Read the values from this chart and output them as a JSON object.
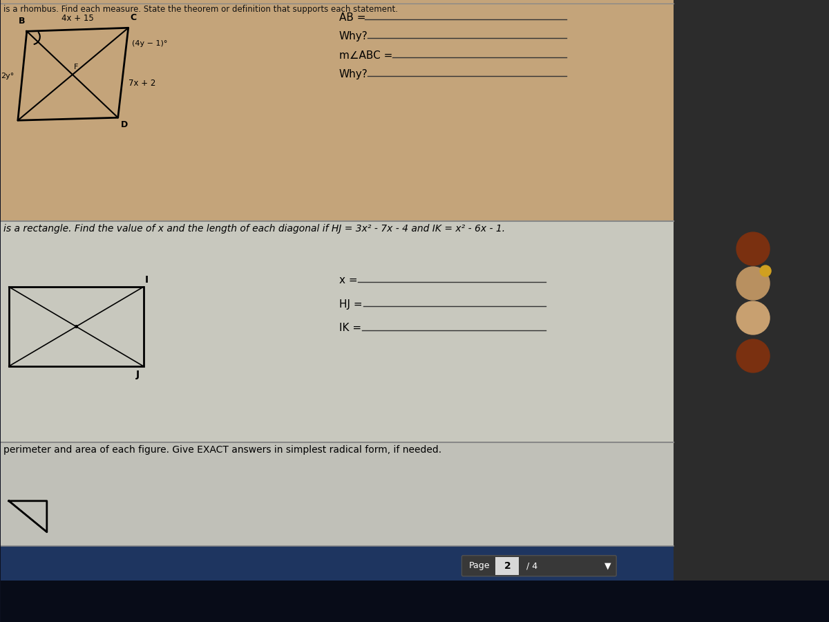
{
  "bg_tan": "#c4a47a",
  "bg_mid_gray": "#c8c8be",
  "bg_bot_gray": "#c0c0b8",
  "bg_sidebar": "#2c2c2c",
  "bg_taskbar_dark": "#0d1020",
  "bg_blue_video": "#1e3560",
  "divider_color": "#888888",
  "text_color": "#111111",
  "header_text": "is a rhombus. Find each measure. State the theorem or definition that supports each statement.",
  "ab_label": "AB =",
  "why1_label": "Why?",
  "mabc_label": "m∠ABC =",
  "why2_label": "Why?",
  "section2_text": "is a rectangle. Find the value of x and the length of each diagonal if HJ = 3x² - 7x - 4 and IK = x² - 6x - 1.",
  "x_label": "x =",
  "hj_label": "HJ =",
  "ik_label": "IK =",
  "perimeter_text": "perimeter and area of each figure. Give EXACT answers in simplest radical form, if needed.",
  "page_text": "Page",
  "page_num": "2",
  "page_total": "/ 4",
  "top_label": "Top",
  "rhombus_top_label": "4x + 15",
  "rhombus_bot_label": "7x + 2",
  "rhombus_angle_label": "(4y − 1)°",
  "rhombus_angle2": "2y°",
  "label_B": "B",
  "label_C": "C",
  "label_D": "D",
  "label_F": "F",
  "label_I": "I",
  "label_J": "J",
  "profile_colors": [
    "#7a3010",
    "#b89060",
    "#c8a070",
    "#7a3010"
  ],
  "page_box_color": "#404040",
  "page_num_bg": "#d8d8d8",
  "line_color": "#222222",
  "ans_line_color": "#333333",
  "red_dot_color": "#cc2020"
}
